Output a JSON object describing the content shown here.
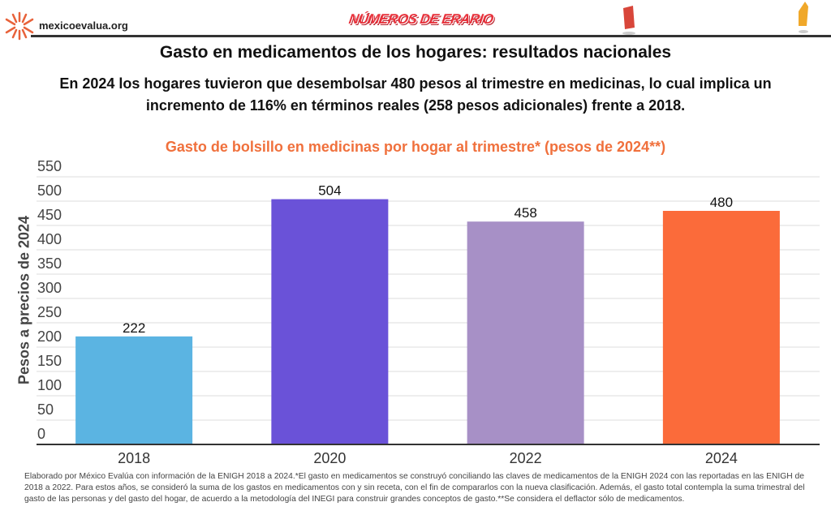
{
  "header": {
    "site": "mexicoevalua.org",
    "brand": "NÚMEROS DE ERARIO"
  },
  "title": "Gasto en medicamentos de los hogares: resultados nacionales",
  "subtitle": "En 2024 los hogares tuvieron que desembolsar 480 pesos al trimestre en medicinas, lo cual implica un incremento de 116% en términos reales (258 pesos adicionales) frente a 2018.",
  "chart_data": {
    "type": "bar",
    "title": "Gasto de bolsillo en medicinas por hogar al trimestre* (pesos de 2024**)",
    "xlabel": "",
    "ylabel": "Pesos a precios de 2024",
    "categories": [
      "2018",
      "2020",
      "2022",
      "2024"
    ],
    "values": [
      222,
      504,
      458,
      480
    ],
    "colors": [
      "#5bb4e2",
      "#6a52d8",
      "#a790c6",
      "#fb6b3a"
    ],
    "ylim": [
      0,
      550
    ],
    "yticks": [
      0,
      50,
      100,
      150,
      200,
      250,
      300,
      350,
      400,
      450,
      500,
      550
    ],
    "grid": true,
    "data_labels": true
  },
  "footnote": "Elaborado por México Evalúa con información de la ENIGH 2018 a 2024.*El gasto en medicamentos se construyó conciliando las claves de medicamentos de la ENIGH 2024 con las reportadas en las ENIGH de 2018 a 2022. Para estos años, se consideró la suma de los gastos en medicamentos con y sin receta, con el fin de compararlos con la nueva clasificación. Además, el gasto total contempla la suma trimestral del gasto de las personas y del gasto del hogar, de acuerdo a la metodología del INEGI para construir grandes conceptos de gasto.**Se considera el deflactor sólo de medicamentos."
}
